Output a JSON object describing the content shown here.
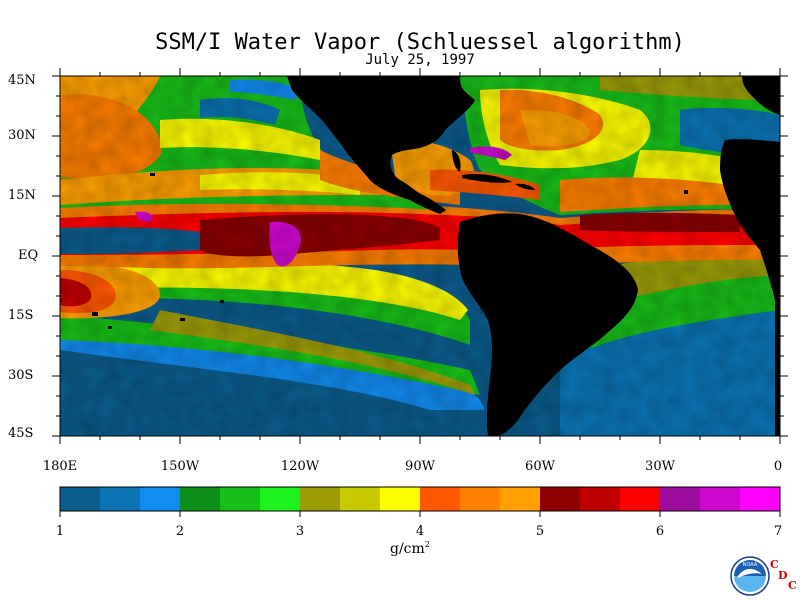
{
  "header": {
    "title": "SSM/I Water Vapor (Schluessel algorithm)",
    "date": "July 25, 1997"
  },
  "map": {
    "lat_labels": [
      "45N",
      "30N",
      "15N",
      "EQ",
      "15S",
      "30S",
      "45S"
    ],
    "lon_labels": [
      "180E",
      "150W",
      "120W",
      "90W",
      "60W",
      "30W",
      "0"
    ],
    "land_color": "#000000"
  },
  "colorbar": {
    "tick_labels": [
      "1",
      "2",
      "3",
      "4",
      "5",
      "6",
      "7"
    ],
    "units": "g/cm",
    "units_exponent": "2",
    "colors": [
      "#0b5c8c",
      "#0a74b5",
      "#118cf0",
      "#0e8f1a",
      "#18bf18",
      "#1ef21e",
      "#9c9c08",
      "#c8c800",
      "#fefe00",
      "#ff5800",
      "#ff7f00",
      "#ffa000",
      "#8c0000",
      "#c00000",
      "#ff0000",
      "#9c0c9c",
      "#cc08cc",
      "#ff00ff"
    ]
  },
  "logo": {
    "name": "noaa-logo",
    "text": "NOAA",
    "letters": [
      "C",
      "D",
      "C"
    ]
  }
}
